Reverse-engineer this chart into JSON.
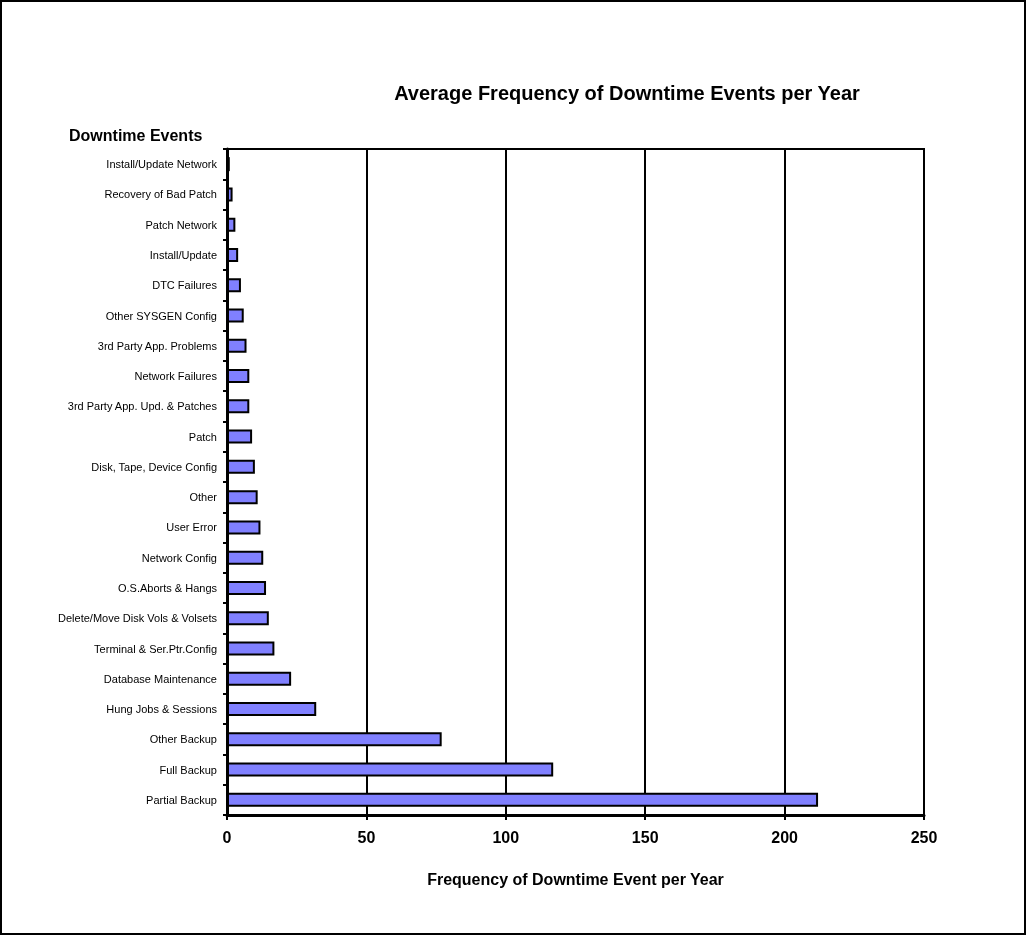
{
  "chart_data": {
    "type": "bar",
    "orientation": "horizontal",
    "title": "Average Frequency of Downtime Events per Year",
    "ylabel": "Downtime Events",
    "xlabel": "Frequency of Downtime Event per Year",
    "categories": [
      "Install/Update Network",
      "Recovery of Bad Patch",
      "Patch Network",
      "Install/Update",
      "DTC Failures",
      "Other SYSGEN Config",
      "3rd Party App. Problems",
      "Network Failures",
      "3rd Party App. Upd. & Patches",
      "Patch",
      "Disk, Tape, Device Config",
      "Other",
      "User Error",
      "Network Config",
      "O.S.Aborts & Hangs",
      "Delete/Move Disk Vols & Volsets",
      "Terminal & Ser.Ptr.Config",
      "Database Maintenance",
      "Hung Jobs & Sessions",
      "Other Backup",
      "Full Backup",
      "Partial Backup"
    ],
    "values": [
      1,
      2,
      3,
      4,
      5,
      6,
      7,
      8,
      8,
      9,
      10,
      11,
      12,
      13,
      14,
      15,
      17,
      23,
      32,
      77,
      117,
      212
    ],
    "color": "#8080ff",
    "xlim": [
      0,
      250
    ],
    "xticks": [
      0,
      50,
      100,
      150,
      200,
      250
    ],
    "grid": "x"
  }
}
